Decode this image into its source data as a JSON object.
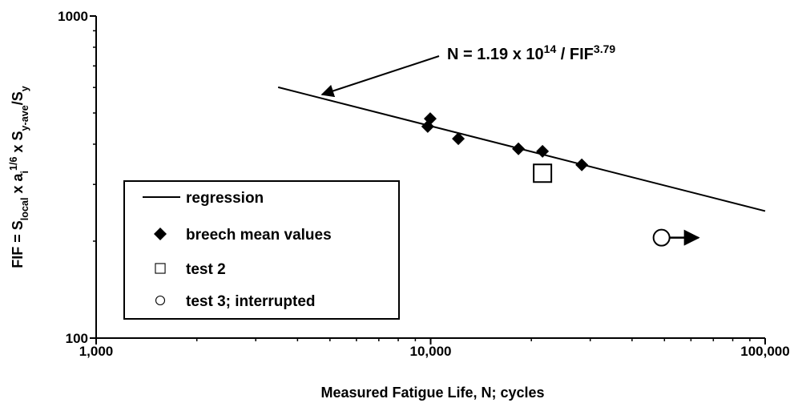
{
  "chart_data": {
    "type": "scatter",
    "xscale": "log",
    "yscale": "log",
    "xlim": [
      1000,
      100000
    ],
    "ylim": [
      100,
      1000
    ],
    "xticks": [
      {
        "value": 1000,
        "label": "1,000"
      },
      {
        "value": 10000,
        "label": "10,000"
      },
      {
        "value": 100000,
        "label": "100,000"
      }
    ],
    "yticks": [
      100,
      1000
    ],
    "xminor": [
      2000,
      3000,
      4000,
      5000,
      6000,
      7000,
      8000,
      9000,
      20000,
      30000,
      40000,
      50000,
      60000,
      70000,
      80000,
      90000
    ],
    "yminor": [
      200,
      300,
      400,
      500,
      600,
      700,
      800,
      900
    ],
    "x_label": "Measured Fatigue Life,  N;  cycles",
    "y_label": [
      {
        "text": "FIF = S"
      },
      {
        "text": "local",
        "sub": true
      },
      {
        "text": " x a"
      },
      {
        "text": "i",
        "sub": true
      },
      {
        "text": "1/6",
        "sup": true
      },
      {
        "text": " x S"
      },
      {
        "text": "y-ave",
        "sub": true
      },
      {
        "text": "/S"
      },
      {
        "text": "y",
        "sub": true
      }
    ],
    "annotation": [
      {
        "text": "N = 1.19 x 10"
      },
      {
        "text": "14",
        "sup": true
      },
      {
        "text": " / FIF"
      },
      {
        "text": "3.79",
        "sup": true
      }
    ],
    "series": [
      {
        "name": "regression",
        "marker": "line",
        "color": "#000000",
        "x": [
          3500,
          100000
        ],
        "values": [
          601,
          248
        ]
      },
      {
        "name": "breech mean values",
        "marker": "diamond",
        "color": "#000000",
        "x": [
          9970,
          9800,
          12100,
          18300,
          21600,
          28300
        ],
        "values": [
          480,
          454,
          416,
          387,
          380,
          345
        ]
      },
      {
        "name": "test 2",
        "marker": "square",
        "color": "#000000",
        "x": [
          21600
        ],
        "values": [
          325
        ]
      },
      {
        "name": "test 3; interrupted",
        "marker": "circle",
        "color": "#000000",
        "x": [
          49000
        ],
        "values": [
          205
        ]
      }
    ]
  }
}
